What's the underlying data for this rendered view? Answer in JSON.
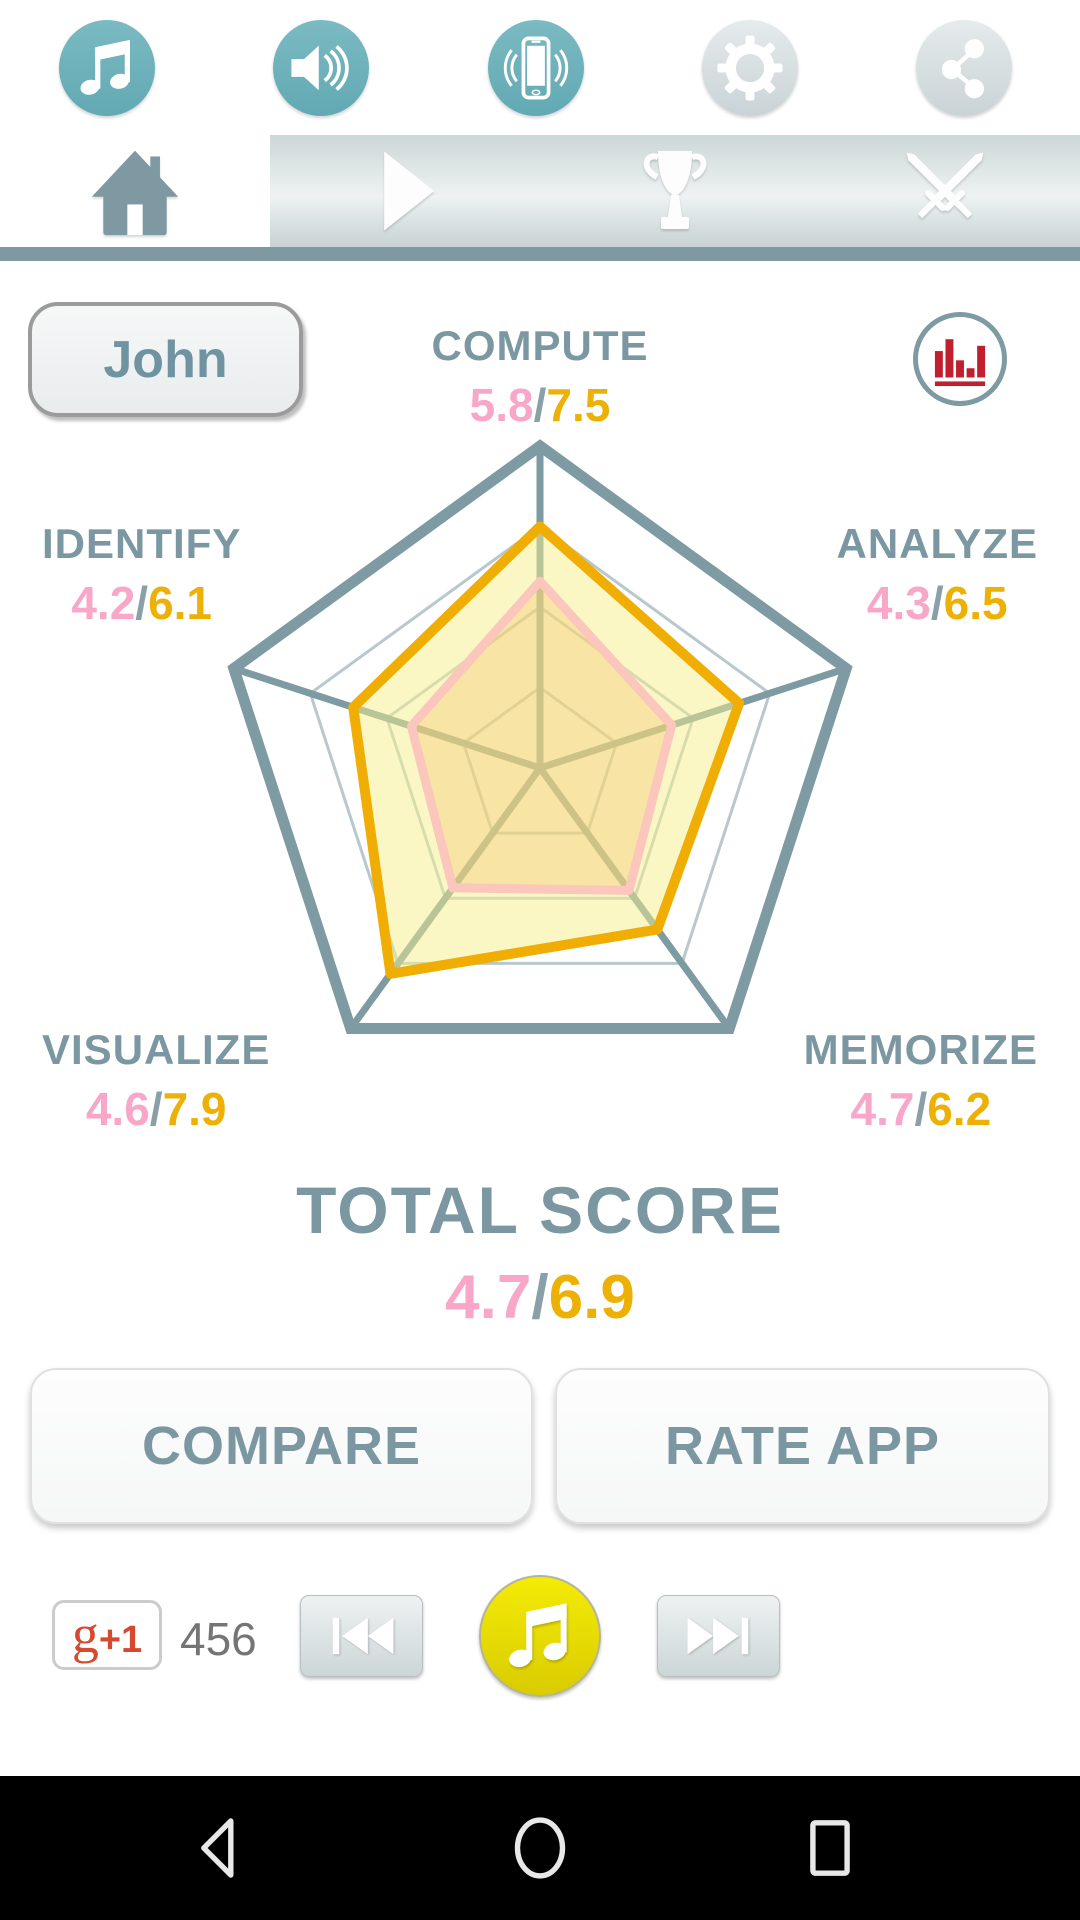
{
  "quick_settings": {
    "icons": [
      {
        "name": "music-note-icon",
        "style": "teal"
      },
      {
        "name": "speaker-icon",
        "style": "teal"
      },
      {
        "name": "vibrate-phone-icon",
        "style": "teal"
      },
      {
        "name": "gear-icon",
        "style": "silver"
      },
      {
        "name": "share-icon",
        "style": "silver"
      }
    ]
  },
  "tabs": [
    {
      "name": "home-tab",
      "icon": "home-icon",
      "active": true
    },
    {
      "name": "play-tab",
      "icon": "play-icon",
      "active": false
    },
    {
      "name": "trophy-tab",
      "icon": "trophy-icon",
      "active": false
    },
    {
      "name": "battle-tab",
      "icon": "crossed-swords-icon",
      "active": false
    }
  ],
  "profile": {
    "name": "John"
  },
  "header_icons": {
    "stats": "bar-chart-icon"
  },
  "strings": {
    "slash": "/"
  },
  "axes": [
    {
      "label": "COMPUTE",
      "current": "5.8",
      "best": "7.5"
    },
    {
      "label": "ANALYZE",
      "current": "4.3",
      "best": "6.5"
    },
    {
      "label": "MEMORIZE",
      "current": "4.7",
      "best": "6.2"
    },
    {
      "label": "VISUALIZE",
      "current": "4.6",
      "best": "7.9"
    },
    {
      "label": "IDENTIFY",
      "current": "4.2",
      "best": "6.1"
    }
  ],
  "total_score": {
    "label": "TOTAL SCORE",
    "current": "4.7",
    "best": "6.9"
  },
  "buttons": {
    "compare": "COMPARE",
    "rate": "RATE APP"
  },
  "social": {
    "gplus_g": "g",
    "gplus_plus1": "+1",
    "count": "456"
  },
  "chart_data": {
    "type": "radar",
    "title": "TOTAL SCORE",
    "categories": [
      "COMPUTE",
      "ANALYZE",
      "MEMORIZE",
      "VISUALIZE",
      "IDENTIFY"
    ],
    "scale_max": 10,
    "rings": [
      2.5,
      5,
      7.5
    ],
    "grid_color": "#7e9aa3",
    "series": [
      {
        "name": "current-score",
        "values": [
          5.8,
          4.3,
          4.7,
          4.6,
          4.2
        ],
        "color": "#fbc6bc",
        "fill": "rgba(246,190,100,0.33)",
        "stroke_width": 9
      },
      {
        "name": "best-score",
        "values": [
          7.5,
          6.5,
          6.2,
          7.9,
          6.1
        ],
        "color": "#f0ae04",
        "fill": "rgba(246,240,140,0.5)",
        "stroke_width": 10
      }
    ],
    "totals": {
      "current": 4.7,
      "best": 6.9
    },
    "legend": "none"
  },
  "colors": {
    "teal_text": "#7b98a2",
    "teal_line": "#7e9aa3",
    "teal_button": "#6fb2bb",
    "pink": "#f9a7c9",
    "amber": "#edb105",
    "red_bars": "#c01f2f",
    "gplus_red": "#d6492f",
    "music_yellow": "#e9de00"
  }
}
